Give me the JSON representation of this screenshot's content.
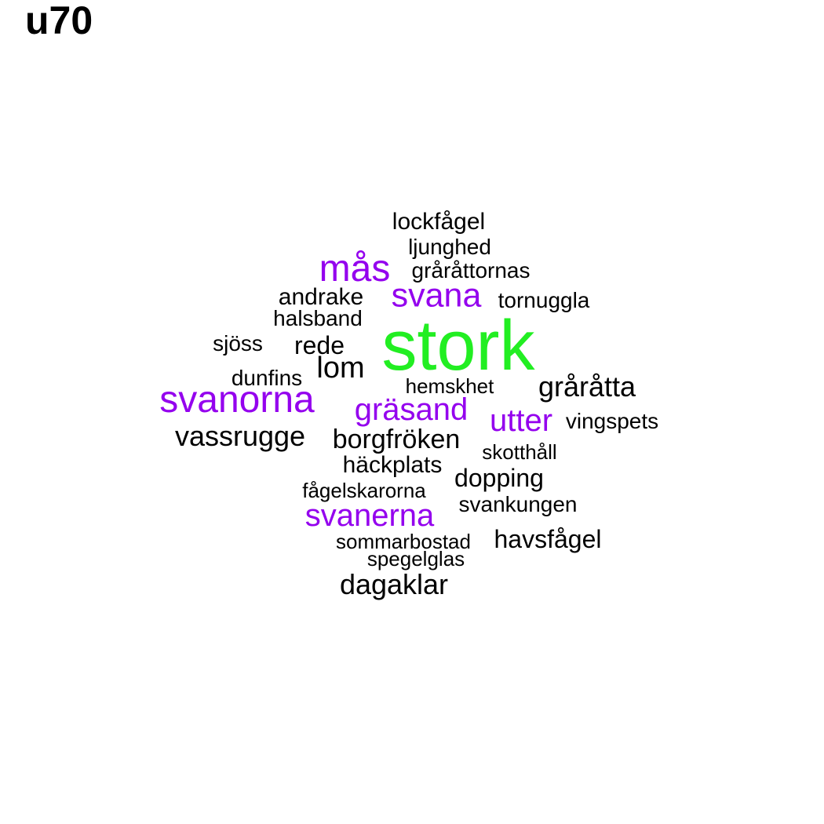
{
  "title": "u70",
  "colors": {
    "top": "#22ee22",
    "high": "#9400ee",
    "normal": "#000000"
  },
  "words": [
    {
      "id": "stork",
      "text": "stork",
      "tier": "top"
    },
    {
      "id": "svanorna",
      "text": "svanorna",
      "tier": "high"
    },
    {
      "id": "mas",
      "text": "mås",
      "tier": "high"
    },
    {
      "id": "svana",
      "text": "svana",
      "tier": "high"
    },
    {
      "id": "grasand",
      "text": "gräsand",
      "tier": "high"
    },
    {
      "id": "utter",
      "text": "utter",
      "tier": "high"
    },
    {
      "id": "svanerna",
      "text": "svanerna",
      "tier": "high"
    },
    {
      "id": "lockfagel",
      "text": "lockfågel",
      "tier": "normal"
    },
    {
      "id": "ljunghed",
      "text": "ljunghed",
      "tier": "normal"
    },
    {
      "id": "grarattornas",
      "text": "gråråttornas",
      "tier": "normal"
    },
    {
      "id": "andrake",
      "text": "andrake",
      "tier": "normal"
    },
    {
      "id": "tornuggla",
      "text": "tornuggla",
      "tier": "normal"
    },
    {
      "id": "halsband",
      "text": "halsband",
      "tier": "normal"
    },
    {
      "id": "sjoss",
      "text": "sjöss",
      "tier": "normal"
    },
    {
      "id": "rede",
      "text": "rede",
      "tier": "normal"
    },
    {
      "id": "lom",
      "text": "lom",
      "tier": "normal"
    },
    {
      "id": "dunfins",
      "text": "dunfins",
      "tier": "normal"
    },
    {
      "id": "hemskhet",
      "text": "hemskhet",
      "tier": "normal"
    },
    {
      "id": "graratta",
      "text": "gråråtta",
      "tier": "normal"
    },
    {
      "id": "vingspets",
      "text": "vingspets",
      "tier": "normal"
    },
    {
      "id": "vassrugge",
      "text": "vassrugge",
      "tier": "normal"
    },
    {
      "id": "borgfroken",
      "text": "borgfröken",
      "tier": "normal"
    },
    {
      "id": "skotthall",
      "text": "skotthåll",
      "tier": "normal"
    },
    {
      "id": "hackplats",
      "text": "häckplats",
      "tier": "normal"
    },
    {
      "id": "dopping",
      "text": "dopping",
      "tier": "normal"
    },
    {
      "id": "fagelskarorna",
      "text": "fågelskarorna",
      "tier": "normal"
    },
    {
      "id": "svankungen",
      "text": "svankungen",
      "tier": "normal"
    },
    {
      "id": "sommarbostad",
      "text": "sommarbostad",
      "tier": "normal"
    },
    {
      "id": "havsfagel",
      "text": "havsfågel",
      "tier": "normal"
    },
    {
      "id": "spegelglas",
      "text": "spegelglas",
      "tier": "normal"
    },
    {
      "id": "dagaklar",
      "text": "dagaklar",
      "tier": "normal"
    }
  ]
}
